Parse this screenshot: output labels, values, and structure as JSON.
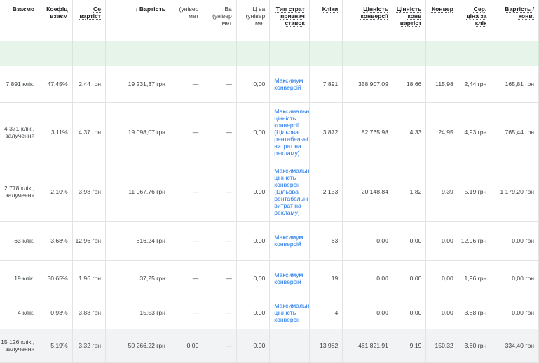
{
  "headers": [
    {
      "label": "Взаємо",
      "bold": true
    },
    {
      "label": "Коефіц взаєм",
      "bold": true
    },
    {
      "label": "Се вартіст",
      "bold": true,
      "underline": true
    },
    {
      "label": "Вартість",
      "bold": true,
      "sorted": true
    },
    {
      "label": "(універ мет",
      "bold": false
    },
    {
      "label": "Ва (універ мет",
      "bold": false
    },
    {
      "label": "Ц ва (універ мет",
      "bold": false
    },
    {
      "label": "Тип страт признач ставок",
      "bold": true,
      "underline": true
    },
    {
      "label": "Кліки",
      "bold": true,
      "underline": true
    },
    {
      "label": "Цінність конверсії",
      "bold": true,
      "underline": true
    },
    {
      "label": "Цінність конв вартіст",
      "bold": true,
      "underline": true
    },
    {
      "label": "Конвер",
      "bold": true,
      "underline": true
    },
    {
      "label": "Сер. ціна за клік",
      "bold": true,
      "underline": true
    },
    {
      "label": "Вартість / конв.",
      "bold": true,
      "underline": true
    }
  ],
  "sort_icon": "arrow-down-icon",
  "rows": [
    {
      "h": 52,
      "cells": [
        "7 891 клік.",
        "47,45%",
        "2,44 грн",
        "19 231,37 грн",
        "—",
        "—",
        "0,00",
        "Максимум конверсій",
        "7 891",
        "358 907,09",
        "18,66",
        "115,98",
        "2,44 грн",
        "165,81 грн"
      ]
    },
    {
      "h": 85,
      "cells": [
        "4 371 клік., залучення",
        "3,11%",
        "4,37 грн",
        "19 098,07 грн",
        "—",
        "—",
        "0,00",
        "Максимальн цінність конверсії (Цільова рентабельні витрат на рекламу)",
        "3 872",
        "82 765,98",
        "4,33",
        "24,95",
        "4,93 грн",
        "765,44 грн"
      ]
    },
    {
      "h": 85,
      "cells": [
        "2 778 клік., залучення",
        "2,10%",
        "3,98 грн",
        "11 067,76 грн",
        "—",
        "—",
        "0,00",
        "Максимальн цінність конверсії (Цільова рентабельні витрат на рекламу)",
        "2 133",
        "20 148,84",
        "1,82",
        "9,39",
        "5,19 грн",
        "1 179,20 грн"
      ]
    },
    {
      "h": 56,
      "cells": [
        "63 клік.",
        "3,68%",
        "12,96 грн",
        "816,24 грн",
        "—",
        "—",
        "0,00",
        "Максимум конверсій",
        "63",
        "0,00",
        "0,00",
        "0,00",
        "12,96 грн",
        "0,00 грн"
      ]
    },
    {
      "h": 52,
      "cells": [
        "19 клік.",
        "30,65%",
        "1,96 грн",
        "37,25 грн",
        "—",
        "—",
        "0,00",
        "Максимум конверсій",
        "19",
        "0,00",
        "0,00",
        "0,00",
        "1,96 грн",
        "0,00 грн"
      ]
    },
    {
      "h": 46,
      "cells": [
        "4 клік.",
        "0,93%",
        "3,88 грн",
        "15,53 грн",
        "—",
        "—",
        "0,00",
        "Максимальн цінність конверсії",
        "4",
        "0,00",
        "0,00",
        "0,00",
        "3,88 грн",
        "0,00 грн"
      ]
    },
    {
      "h": 48,
      "total": true,
      "cells": [
        "15 126 клік., залучення",
        "5,19%",
        "3,32 грн",
        "50 266,22 грн",
        "0,00",
        "—",
        "0,00",
        "",
        "13 982",
        "461 821,91",
        "9,19",
        "150,32",
        "3,60 грн",
        "334,40 грн"
      ]
    }
  ]
}
